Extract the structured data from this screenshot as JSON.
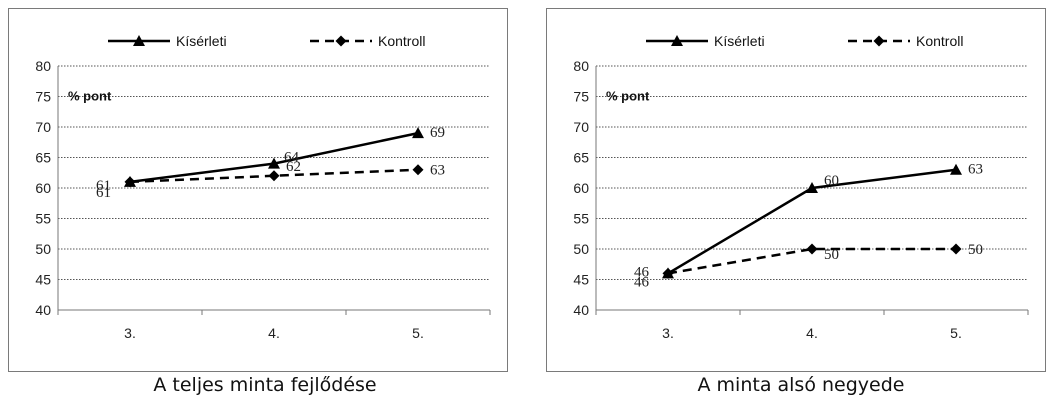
{
  "chart_data": [
    {
      "type": "line",
      "title": "",
      "caption": "A teljes minta fejlődése",
      "unit_label": "% pont",
      "categories": [
        "3.",
        "4.",
        "5."
      ],
      "ylim": [
        40,
        80
      ],
      "yticks": [
        "40",
        "45",
        "50",
        "55",
        "60",
        "65",
        "70",
        "75",
        "80"
      ],
      "grid": true,
      "legend": "top-center",
      "series": [
        {
          "name": "Kísérleti",
          "values": [
            61,
            64,
            69
          ],
          "style": "solid",
          "marker": "triangle",
          "color": "#000000"
        },
        {
          "name": "Kontroll",
          "values": [
            61,
            62,
            63
          ],
          "style": "dashed",
          "marker": "diamond",
          "color": "#000000"
        }
      ]
    },
    {
      "type": "line",
      "title": "",
      "caption": "A minta alsó negyede",
      "unit_label": "% pont",
      "categories": [
        "3.",
        "4.",
        "5."
      ],
      "ylim": [
        40,
        80
      ],
      "yticks": [
        "40",
        "45",
        "50",
        "55",
        "60",
        "65",
        "70",
        "75",
        "80"
      ],
      "grid": true,
      "legend": "top-center",
      "series": [
        {
          "name": "Kísérleti",
          "values": [
            46,
            60,
            63
          ],
          "style": "solid",
          "marker": "triangle",
          "color": "#000000"
        },
        {
          "name": "Kontroll",
          "values": [
            46,
            50,
            50
          ],
          "style": "dashed",
          "marker": "diamond",
          "color": "#000000"
        }
      ]
    }
  ]
}
